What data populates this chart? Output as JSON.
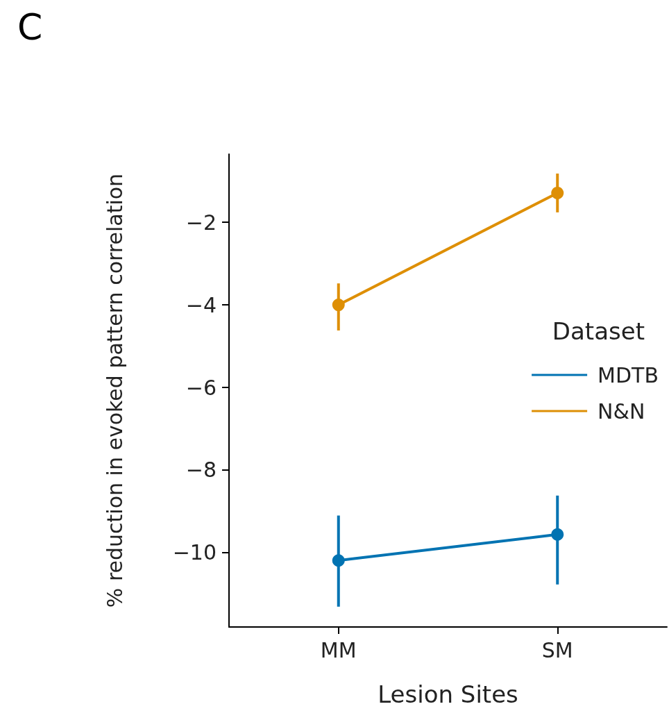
{
  "chart_data": {
    "type": "line",
    "title": "C",
    "xlabel": "Lesion Sites",
    "ylabel": "% reduction in evoked pattern correlation",
    "legend_title": "Dataset",
    "categories": [
      "MM",
      "SM"
    ],
    "series": [
      {
        "name": "MDTB",
        "color": "#0173b2",
        "values": [
          -10.19,
          -9.56
        ],
        "errors": [
          [
            -11.31,
            -9.1
          ],
          [
            -10.77,
            -8.62
          ]
        ]
      },
      {
        "name": "N&N",
        "color": "#de8f05",
        "values": [
          -4.0,
          -1.29
        ],
        "errors": [
          [
            -4.62,
            -3.48
          ],
          [
            -1.76,
            -0.82
          ]
        ]
      }
    ],
    "ylim": [
      -11.8,
      -0.35
    ],
    "yticks": [
      -10,
      -8,
      -6,
      -4,
      -2
    ],
    "grid": false,
    "legend": "right",
    "marker": "circle",
    "line_style": "solid"
  }
}
